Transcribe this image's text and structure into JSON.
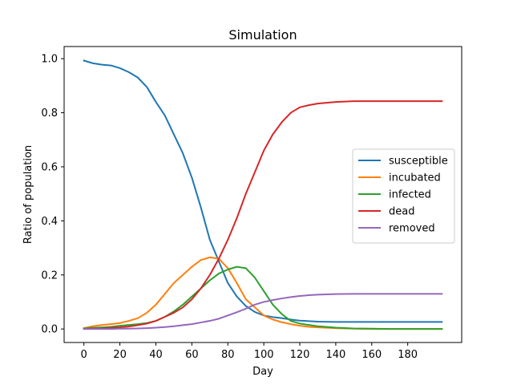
{
  "chart_data": {
    "type": "line",
    "title": "Simulation",
    "xlabel": "Day",
    "ylabel": "Ratio of population",
    "xlim": [
      -11,
      210
    ],
    "ylim": [
      -0.05,
      1.045
    ],
    "xticks": [
      0,
      20,
      40,
      60,
      80,
      100,
      120,
      140,
      160,
      180
    ],
    "yticks": [
      0.0,
      0.2,
      0.4,
      0.6,
      0.8,
      1.0
    ],
    "xtick_labels": [
      "0",
      "20",
      "40",
      "60",
      "80",
      "100",
      "120",
      "140",
      "160",
      "180"
    ],
    "ytick_labels": [
      "0.0",
      "0.2",
      "0.4",
      "0.6",
      "0.8",
      "1.0"
    ],
    "grid": false,
    "legend_position": "center-right",
    "x": [
      0,
      5,
      10,
      15,
      20,
      25,
      30,
      35,
      40,
      45,
      50,
      55,
      60,
      65,
      70,
      75,
      80,
      85,
      90,
      95,
      100,
      105,
      110,
      115,
      120,
      125,
      130,
      140,
      150,
      160,
      170,
      180,
      190,
      199
    ],
    "series": [
      {
        "name": "susceptible",
        "color": "#1f77b4",
        "values": [
          0.993,
          0.983,
          0.978,
          0.975,
          0.965,
          0.95,
          0.93,
          0.895,
          0.84,
          0.79,
          0.72,
          0.65,
          0.56,
          0.45,
          0.33,
          0.25,
          0.17,
          0.12,
          0.085,
          0.063,
          0.05,
          0.044,
          0.04,
          0.035,
          0.031,
          0.029,
          0.027,
          0.026,
          0.026,
          0.026,
          0.026,
          0.026,
          0.026,
          0.026
        ]
      },
      {
        "name": "incubated",
        "color": "#ff7f0e",
        "values": [
          0.003,
          0.01,
          0.015,
          0.018,
          0.022,
          0.03,
          0.04,
          0.06,
          0.09,
          0.13,
          0.17,
          0.2,
          0.23,
          0.255,
          0.265,
          0.26,
          0.225,
          0.17,
          0.11,
          0.08,
          0.05,
          0.035,
          0.025,
          0.018,
          0.012,
          0.008,
          0.006,
          0.003,
          0.001,
          0.0,
          0.0,
          0.0,
          0.0,
          0.0
        ]
      },
      {
        "name": "infected",
        "color": "#2ca02c",
        "values": [
          0.002,
          0.004,
          0.006,
          0.008,
          0.012,
          0.015,
          0.018,
          0.022,
          0.03,
          0.045,
          0.065,
          0.09,
          0.12,
          0.15,
          0.18,
          0.205,
          0.22,
          0.23,
          0.225,
          0.19,
          0.14,
          0.09,
          0.055,
          0.03,
          0.02,
          0.015,
          0.01,
          0.005,
          0.002,
          0.001,
          0.0,
          0.0,
          0.0,
          0.0
        ]
      },
      {
        "name": "dead",
        "color": "#d62728",
        "values": [
          0.0,
          0.001,
          0.002,
          0.004,
          0.006,
          0.009,
          0.014,
          0.02,
          0.03,
          0.045,
          0.06,
          0.08,
          0.11,
          0.15,
          0.2,
          0.26,
          0.33,
          0.41,
          0.5,
          0.58,
          0.66,
          0.72,
          0.765,
          0.8,
          0.82,
          0.828,
          0.834,
          0.84,
          0.843,
          0.843,
          0.843,
          0.843,
          0.843,
          0.843
        ]
      },
      {
        "name": "removed",
        "color": "#9467bd",
        "values": [
          0.0,
          0.0,
          0.0,
          0.0,
          0.001,
          0.001,
          0.002,
          0.003,
          0.005,
          0.007,
          0.01,
          0.014,
          0.018,
          0.024,
          0.03,
          0.038,
          0.05,
          0.062,
          0.075,
          0.09,
          0.1,
          0.107,
          0.113,
          0.118,
          0.122,
          0.125,
          0.127,
          0.129,
          0.13,
          0.13,
          0.13,
          0.13,
          0.13,
          0.13
        ]
      }
    ]
  }
}
